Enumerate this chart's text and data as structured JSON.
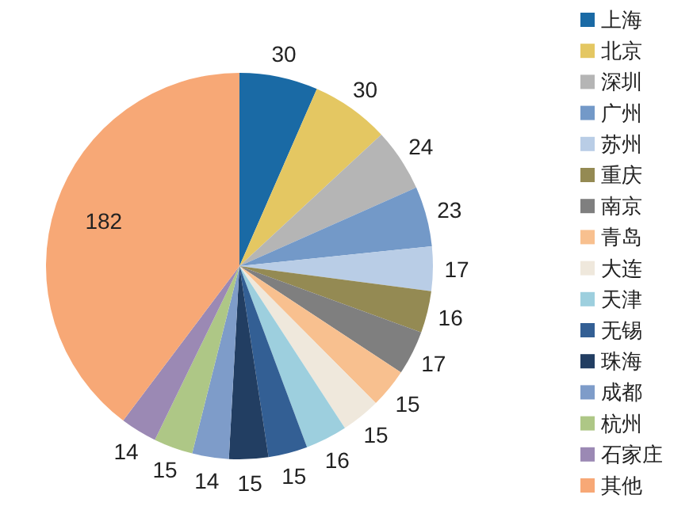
{
  "chart_data": {
    "type": "pie",
    "legend": "right",
    "data_labels": true,
    "categories": [
      "上海",
      "北京",
      "深圳",
      "广州",
      "苏州",
      "重庆",
      "南京",
      "青岛",
      "大连",
      "天津",
      "无锡",
      "珠海",
      "成都",
      "杭州",
      "石家庄",
      "其他"
    ],
    "values": [
      30,
      30,
      24,
      23,
      17,
      16,
      17,
      15,
      15,
      16,
      15,
      15,
      14,
      15,
      14,
      182
    ],
    "colors": [
      "#1a6aa5",
      "#e4c762",
      "#b5b5b5",
      "#7399c8",
      "#b9cde6",
      "#948a53",
      "#7f7f7f",
      "#f8c08f",
      "#efe8dc",
      "#9dcfde",
      "#335f94",
      "#223e62",
      "#7e9cc9",
      "#aec786",
      "#9b89b4",
      "#f7a876"
    ]
  }
}
